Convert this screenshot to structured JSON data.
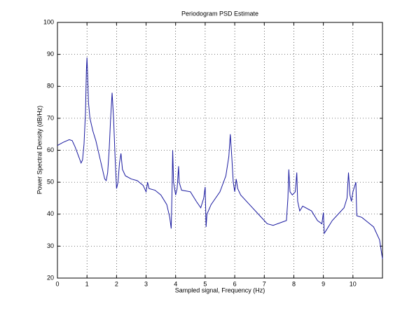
{
  "chart_data": {
    "type": "line",
    "title": "Periodogram PSD Estimate",
    "xlabel": "Sampled signal, Frequency (Hz)",
    "ylabel": "Power Spectral Density (dB/Hz)",
    "xlim": [
      0,
      11
    ],
    "ylim": [
      20,
      100
    ],
    "xticks": [
      0,
      1,
      2,
      3,
      4,
      5,
      6,
      7,
      8,
      9,
      10
    ],
    "yticks": [
      20,
      30,
      40,
      50,
      60,
      70,
      80,
      90,
      100
    ],
    "grid": true,
    "x": [
      0,
      0.2,
      0.4,
      0.5,
      0.6,
      0.7,
      0.8,
      0.85,
      0.9,
      0.95,
      0.98,
      1.0,
      1.02,
      1.05,
      1.1,
      1.2,
      1.3,
      1.4,
      1.5,
      1.6,
      1.65,
      1.7,
      1.75,
      1.8,
      1.85,
      1.9,
      1.95,
      2.0,
      2.05,
      2.1,
      2.15,
      2.2,
      2.3,
      2.5,
      2.7,
      2.9,
      3.0,
      3.05,
      3.1,
      3.3,
      3.5,
      3.7,
      3.8,
      3.85,
      3.88,
      3.9,
      3.93,
      4.0,
      4.05,
      4.1,
      4.12,
      4.2,
      4.5,
      4.7,
      4.85,
      4.95,
      5.0,
      5.03,
      5.06,
      5.2,
      5.5,
      5.7,
      5.8,
      5.85,
      5.9,
      5.95,
      6.0,
      6.05,
      6.1,
      6.2,
      6.5,
      6.8,
      7.0,
      7.1,
      7.3,
      7.6,
      7.75,
      7.8,
      7.83,
      7.87,
      7.95,
      8.05,
      8.1,
      8.13,
      8.2,
      8.3,
      8.6,
      8.8,
      8.95,
      9.0,
      9.03,
      9.1,
      9.3,
      9.5,
      9.7,
      9.8,
      9.85,
      9.9,
      9.95,
      10.0,
      10.1,
      10.13,
      10.3,
      10.5,
      10.7,
      10.9,
      11.0
    ],
    "series": [
      {
        "color": "#1a1aa0",
        "values": [
          61.5,
          62.5,
          63.3,
          63,
          61,
          58.5,
          56,
          57,
          62,
          72,
          85,
          89,
          84,
          75,
          70,
          66,
          63,
          59,
          55,
          51,
          50.5,
          53,
          60,
          70,
          78,
          70,
          58,
          48,
          50,
          56,
          59,
          54,
          52,
          51,
          50.5,
          49,
          47,
          50,
          48,
          47.5,
          46,
          43,
          39,
          35.5,
          48,
          60,
          50,
          46,
          48,
          55,
          50,
          47.5,
          47,
          44,
          42,
          45,
          48.5,
          36,
          40,
          43,
          47,
          52,
          58,
          65,
          58,
          50,
          47,
          51,
          48,
          46,
          43,
          40,
          38,
          37,
          36.5,
          37.5,
          38,
          45,
          54,
          47,
          46,
          47,
          53,
          44,
          41,
          42.5,
          41,
          38,
          37,
          40.5,
          34,
          35,
          38,
          40,
          42,
          45,
          53,
          46,
          44,
          47,
          50,
          39.5,
          39,
          37.5,
          36,
          32,
          26
        ]
      }
    ]
  }
}
